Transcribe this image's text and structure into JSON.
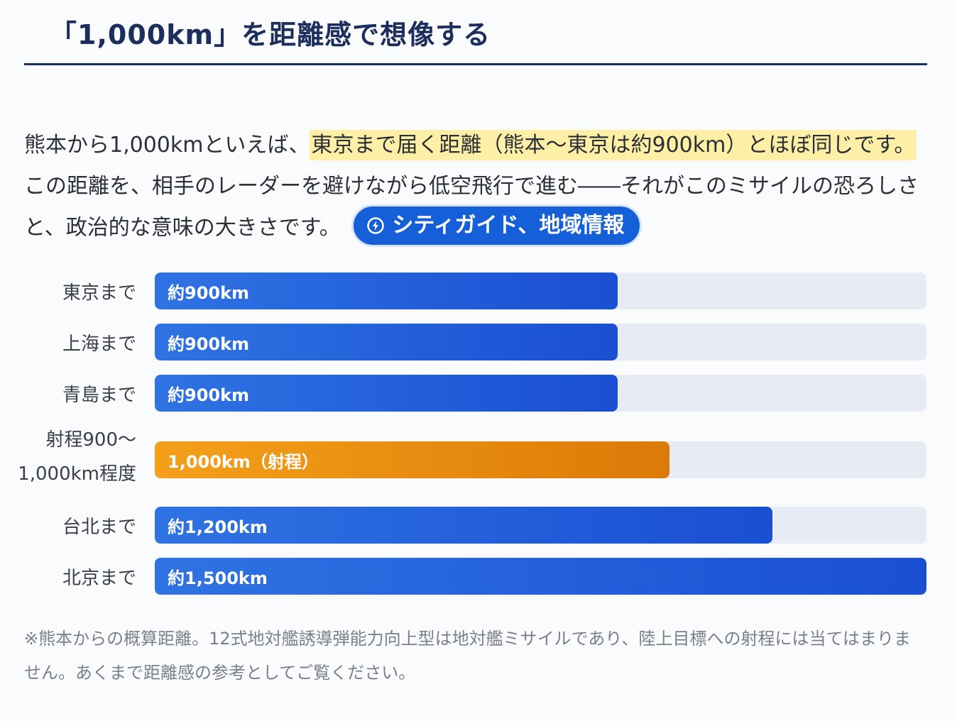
{
  "heading": {
    "title": "「1,000km」を距離感で想像する"
  },
  "lead": {
    "part1": "熊本から1,000kmといえば、",
    "highlight": "東京まで届く距離（熊本〜東京は約900km）とほぼ同じです。",
    "part2": "この距離を、相手のレーダーを避けながら低空飛行で進む――それがこのミサイルの恐ろしさと、政治的な意味の大きさです。",
    "pill_label": "シティガイド、地域情報",
    "pill_icon": "lightning-circle-icon"
  },
  "chart_data": {
    "type": "bar",
    "orientation": "horizontal",
    "xlim": [
      0,
      1500
    ],
    "unit": "km",
    "categories": [
      "東京まで",
      "上海まで",
      "青島まで",
      "射程900〜1,000km程度",
      "台北まで",
      "北京まで"
    ],
    "values": [
      900,
      900,
      900,
      1000,
      1200,
      1500
    ],
    "bar_labels": [
      "約900km",
      "約900km",
      "約900km",
      "1,000km（射程）",
      "約1,200km",
      "約1,500km"
    ],
    "highlight_index": 3,
    "colors": {
      "primary": "#1f5ad8",
      "accent": "#e68a10",
      "track": "#e7ecf4"
    }
  },
  "footnote": "※熊本からの概算距離。12式地対艦誘導弾能力向上型は地対艦ミサイルであり、陸上目標への射程には当てはまりません。あくまで距離感の参考としてご覧ください。"
}
